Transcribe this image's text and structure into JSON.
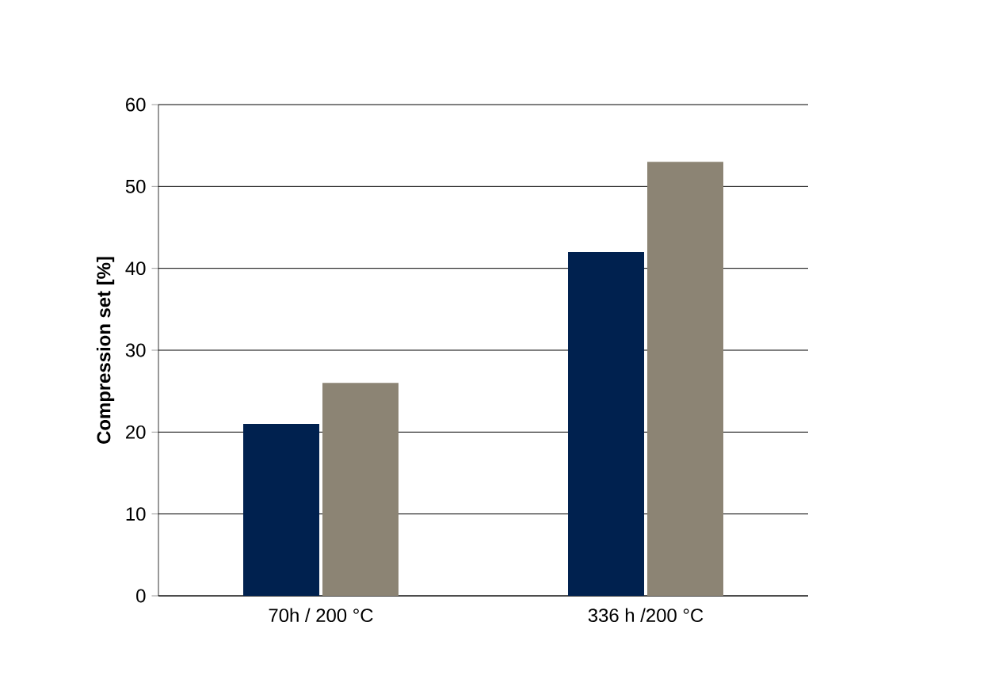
{
  "chart_data": {
    "type": "bar",
    "ylabel": "Compression set [%]",
    "categories": [
      "70h / 200 °C",
      "336 h /200 °C"
    ],
    "series": [
      {
        "color": "#00214f",
        "values": [
          21,
          42
        ]
      },
      {
        "color": "#8c8474",
        "values": [
          26,
          53
        ]
      }
    ],
    "ylim": [
      0,
      60
    ],
    "yticks": [
      0,
      10,
      20,
      30,
      40,
      50,
      60
    ],
    "grid": "y"
  }
}
